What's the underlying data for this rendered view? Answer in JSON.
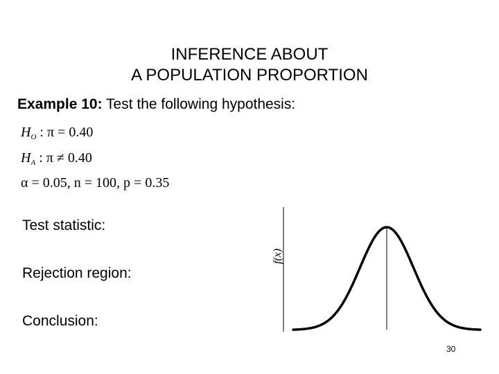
{
  "slide": {
    "title_line1": "INFERENCE ABOUT",
    "title_line2": "A POPULATION PROPORTION",
    "example_label": "Example 10:",
    "example_text": " Test the following hypothesis:",
    "null_hypothesis": {
      "symbol": "H",
      "subscript": "O",
      "rest": ": π = 0.40"
    },
    "alt_hypothesis": {
      "symbol": "H",
      "subscript": "A",
      "rest": ": π ≠ 0.40"
    },
    "parameters": "α = 0.05, n = 100, p = 0.35",
    "test_statistic_label": "Test statistic:",
    "rejection_region_label": "Rejection region:",
    "conclusion_label": "Conclusion:",
    "page_number": "30"
  },
  "chart_data": {
    "type": "line",
    "title": "",
    "xlabel": "",
    "ylabel": "f(x)",
    "curve": "normal",
    "center_line": true,
    "mean": 0,
    "sd": 1,
    "x_range": [
      -3.5,
      3.5
    ],
    "color": "#000000"
  }
}
